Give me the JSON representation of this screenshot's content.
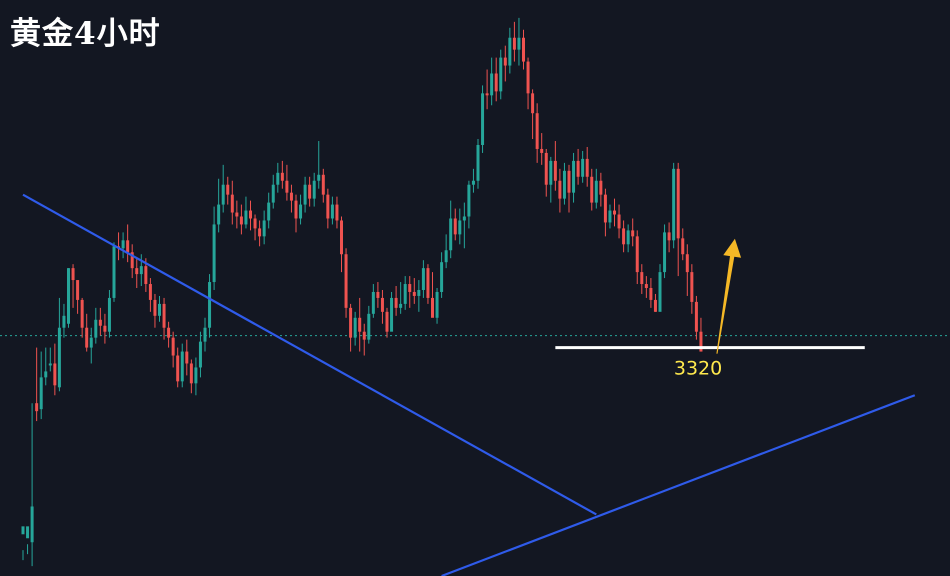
{
  "title": "黄金4小时",
  "chart_data": {
    "type": "candlestick",
    "instrument": "黄金",
    "timeframe": "4小时",
    "colors": {
      "background": "#131722",
      "up": "#26a69a",
      "down": "#ef5350",
      "trendline": "#2f5bea",
      "support": "#ffffff",
      "support_label": "#ffe94d",
      "arrow": "#f5b826",
      "price_line": "#26a69a"
    },
    "ylim": [
      3205,
      3495
    ],
    "candles": [
      [
        3226,
        3230,
        3218,
        3213
      ],
      [
        3224,
        3230,
        3221,
        3216
      ],
      [
        3222,
        3240,
        3292,
        3210
      ],
      [
        3292,
        3288,
        3320,
        3283
      ],
      [
        3289,
        3305,
        3318,
        3284
      ],
      [
        3305,
        3308,
        3320,
        3301
      ],
      [
        3311,
        3312,
        3320,
        3308
      ],
      [
        3312,
        3301,
        3322,
        3296
      ],
      [
        3300,
        3330,
        3345,
        3298
      ],
      [
        3330,
        3336,
        3342,
        3325
      ],
      [
        3332,
        3360,
        3360,
        3330
      ],
      [
        3360,
        3354,
        3362,
        3340
      ],
      [
        3354,
        3344,
        3350,
        3337
      ],
      [
        3344,
        3330,
        3345,
        3325
      ],
      [
        3330,
        3320,
        3337,
        3318
      ],
      [
        3320,
        3325,
        3330,
        3312
      ],
      [
        3325,
        3334,
        3340,
        3322
      ],
      [
        3334,
        3331,
        3340,
        3326
      ],
      [
        3331,
        3328,
        3337,
        3322
      ],
      [
        3328,
        3345,
        3349,
        3325
      ],
      [
        3345,
        3371,
        3373,
        3343
      ],
      [
        3371,
        3370,
        3378,
        3364
      ],
      [
        3370,
        3374,
        3378,
        3365
      ],
      [
        3374,
        3368,
        3382,
        3363
      ],
      [
        3368,
        3360,
        3372,
        3355
      ],
      [
        3360,
        3357,
        3365,
        3350
      ],
      [
        3357,
        3361,
        3367,
        3351
      ],
      [
        3361,
        3352,
        3365,
        3348
      ],
      [
        3352,
        3344,
        3355,
        3338
      ],
      [
        3344,
        3336,
        3347,
        3330
      ],
      [
        3336,
        3342,
        3346,
        3333
      ],
      [
        3342,
        3330,
        3345,
        3324
      ],
      [
        3330,
        3325,
        3333,
        3320
      ],
      [
        3325,
        3316,
        3328,
        3310
      ],
      [
        3316,
        3303,
        3320,
        3300
      ],
      [
        3303,
        3318,
        3322,
        3300
      ],
      [
        3318,
        3312,
        3324,
        3306
      ],
      [
        3312,
        3302,
        3314,
        3297
      ],
      [
        3302,
        3310,
        3315,
        3296
      ],
      [
        3310,
        3323,
        3328,
        3305
      ],
      [
        3323,
        3330,
        3335,
        3318
      ],
      [
        3330,
        3353,
        3357,
        3325
      ],
      [
        3353,
        3382,
        3391,
        3349
      ],
      [
        3382,
        3392,
        3405,
        3378
      ],
      [
        3392,
        3402,
        3412,
        3388
      ],
      [
        3402,
        3397,
        3406,
        3392
      ],
      [
        3397,
        3388,
        3404,
        3382
      ],
      [
        3388,
        3386,
        3394,
        3380
      ],
      [
        3386,
        3382,
        3392,
        3377
      ],
      [
        3382,
        3389,
        3396,
        3380
      ],
      [
        3389,
        3385,
        3394,
        3379
      ],
      [
        3385,
        3380,
        3387,
        3374
      ],
      [
        3380,
        3376,
        3384,
        3371
      ],
      [
        3376,
        3384,
        3389,
        3372
      ],
      [
        3384,
        3393,
        3398,
        3380
      ],
      [
        3393,
        3402,
        3407,
        3390
      ],
      [
        3402,
        3408,
        3413,
        3398
      ],
      [
        3408,
        3404,
        3414,
        3400
      ],
      [
        3404,
        3398,
        3412,
        3394
      ],
      [
        3398,
        3394,
        3402,
        3388
      ],
      [
        3394,
        3385,
        3397,
        3378
      ],
      [
        3385,
        3392,
        3397,
        3382
      ],
      [
        3392,
        3402,
        3406,
        3388
      ],
      [
        3402,
        3395,
        3406,
        3391
      ],
      [
        3395,
        3404,
        3408,
        3391
      ],
      [
        3404,
        3407,
        3424,
        3400
      ],
      [
        3407,
        3397,
        3410,
        3393
      ],
      [
        3397,
        3385,
        3400,
        3380
      ],
      [
        3385,
        3392,
        3396,
        3382
      ],
      [
        3392,
        3384,
        3396,
        3380
      ],
      [
        3384,
        3367,
        3386,
        3358
      ],
      [
        3367,
        3340,
        3370,
        3335
      ],
      [
        3340,
        3325,
        3342,
        3318
      ],
      [
        3325,
        3335,
        3338,
        3321
      ],
      [
        3335,
        3328,
        3345,
        3318
      ],
      [
        3328,
        3324,
        3332,
        3316
      ],
      [
        3324,
        3337,
        3341,
        3322
      ],
      [
        3337,
        3348,
        3352,
        3335
      ],
      [
        3348,
        3345,
        3353,
        3340
      ],
      [
        3345,
        3338,
        3349,
        3332
      ],
      [
        3338,
        3328,
        3340,
        3325
      ],
      [
        3328,
        3345,
        3348,
        3330
      ],
      [
        3345,
        3340,
        3351,
        3336
      ],
      [
        3340,
        3342,
        3353,
        3337
      ],
      [
        3342,
        3352,
        3356,
        3339
      ],
      [
        3352,
        3348,
        3356,
        3340
      ],
      [
        3348,
        3346,
        3355,
        3342
      ],
      [
        3346,
        3349,
        3354,
        3338
      ],
      [
        3349,
        3360,
        3364,
        3345
      ],
      [
        3360,
        3345,
        3362,
        3342
      ],
      [
        3345,
        3335,
        3358,
        3340
      ],
      [
        3335,
        3348,
        3350,
        3332
      ],
      [
        3348,
        3363,
        3368,
        3345
      ],
      [
        3363,
        3369,
        3377,
        3360
      ],
      [
        3369,
        3385,
        3394,
        3365
      ],
      [
        3385,
        3377,
        3390,
        3374
      ],
      [
        3377,
        3384,
        3390,
        3372
      ],
      [
        3384,
        3386,
        3393,
        3370
      ],
      [
        3386,
        3402,
        3404,
        3380
      ],
      [
        3402,
        3404,
        3410,
        3398
      ],
      [
        3404,
        3422,
        3425,
        3400
      ],
      [
        3422,
        3448,
        3452,
        3418
      ],
      [
        3448,
        3447,
        3460,
        3440
      ],
      [
        3447,
        3458,
        3466,
        3442
      ],
      [
        3458,
        3449,
        3466,
        3444
      ],
      [
        3449,
        3466,
        3470,
        3445
      ],
      [
        3466,
        3462,
        3472,
        3454
      ],
      [
        3462,
        3476,
        3481,
        3458
      ],
      [
        3476,
        3470,
        3484,
        3464
      ],
      [
        3470,
        3476,
        3486,
        3462
      ],
      [
        3476,
        3464,
        3480,
        3460
      ],
      [
        3464,
        3448,
        3466,
        3440
      ],
      [
        3448,
        3438,
        3450,
        3425
      ],
      [
        3438,
        3420,
        3443,
        3413
      ],
      [
        3420,
        3418,
        3428,
        3412
      ],
      [
        3418,
        3402,
        3420,
        3396
      ],
      [
        3402,
        3414,
        3416,
        3393
      ],
      [
        3414,
        3404,
        3424,
        3399
      ],
      [
        3404,
        3395,
        3410,
        3388
      ],
      [
        3395,
        3409,
        3413,
        3392
      ],
      [
        3409,
        3398,
        3412,
        3388
      ],
      [
        3398,
        3414,
        3418,
        3393
      ],
      [
        3414,
        3406,
        3420,
        3402
      ],
      [
        3406,
        3415,
        3419,
        3403
      ],
      [
        3415,
        3406,
        3421,
        3401
      ],
      [
        3406,
        3393,
        3410,
        3389
      ],
      [
        3393,
        3404,
        3410,
        3390
      ],
      [
        3404,
        3397,
        3408,
        3391
      ],
      [
        3397,
        3383,
        3400,
        3376
      ],
      [
        3383,
        3389,
        3392,
        3380
      ],
      [
        3389,
        3387,
        3395,
        3381
      ],
      [
        3387,
        3380,
        3392,
        3375
      ],
      [
        3380,
        3372,
        3384,
        3368
      ],
      [
        3372,
        3379,
        3382,
        3368
      ],
      [
        3379,
        3376,
        3385,
        3371
      ],
      [
        3376,
        3358,
        3379,
        3352
      ],
      [
        3358,
        3352,
        3362,
        3347
      ],
      [
        3352,
        3350,
        3356,
        3345
      ],
      [
        3350,
        3344,
        3355,
        3340
      ],
      [
        3344,
        3338,
        3347,
        3338
      ],
      [
        3338,
        3358,
        3362,
        3345
      ],
      [
        3358,
        3378,
        3382,
        3355
      ],
      [
        3378,
        3374,
        3383,
        3368
      ],
      [
        3374,
        3410,
        3413,
        3370
      ],
      [
        3410,
        3375,
        3413,
        3356
      ],
      [
        3375,
        3367,
        3380,
        3364
      ],
      [
        3367,
        3358,
        3372,
        3346
      ],
      [
        3358,
        3343,
        3362,
        3337
      ],
      [
        3343,
        3328,
        3346,
        3324
      ],
      [
        3328,
        3318,
        3335,
        3318
      ]
    ],
    "trendlines": [
      {
        "from": [
          0,
          3397
        ],
        "to": [
          126,
          3236
        ]
      },
      {
        "from": [
          92,
          3205
        ],
        "to": [
          196,
          3296
        ]
      }
    ],
    "support": {
      "value": 3320,
      "label": "3320",
      "from_index": 117,
      "to_index": 185
    },
    "current_price": 3326,
    "arrow": "up"
  }
}
